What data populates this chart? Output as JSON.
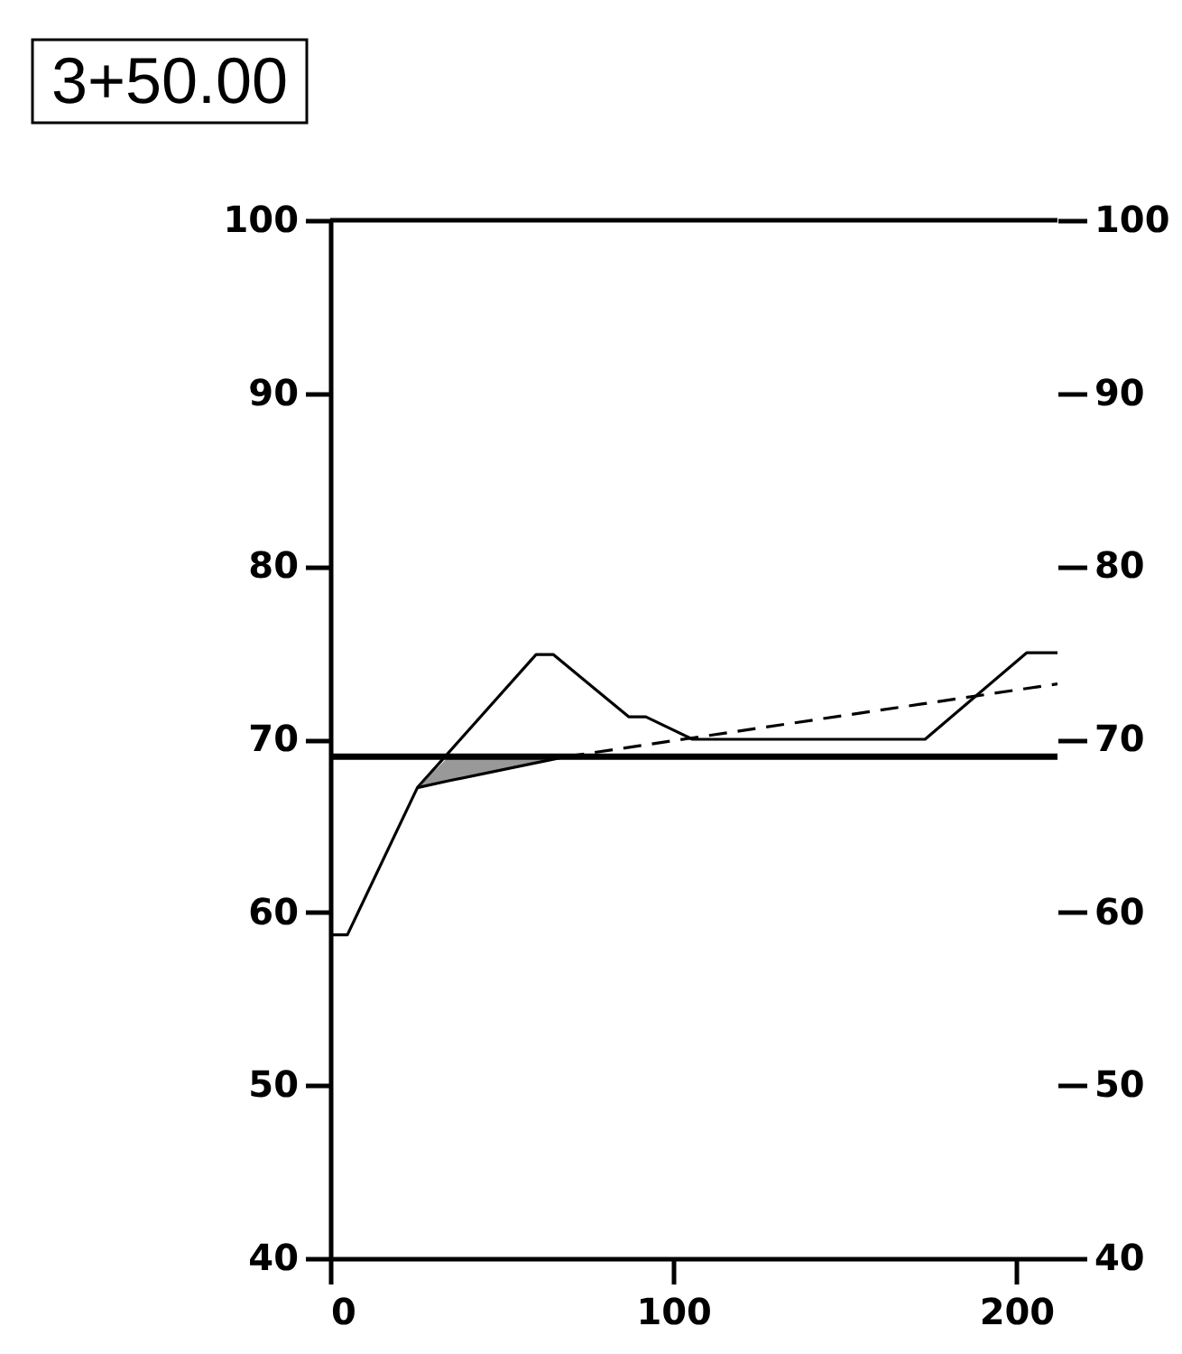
{
  "chart_data": {
    "type": "line",
    "title": "3+50.00",
    "xlim": [
      0,
      212
    ],
    "xticks": [
      0,
      100,
      200
    ],
    "ylim": [
      40,
      100
    ],
    "yticks": [
      40,
      50,
      60,
      70,
      80,
      90,
      100
    ],
    "y2lim": [
      40,
      100
    ],
    "y2ticks": [
      40,
      50,
      60,
      70,
      80,
      90,
      100
    ],
    "grid": false,
    "series": [
      {
        "color": "#000000",
        "line_style": "solid",
        "x": [
          0,
          5,
          25.4,
          60,
          65,
          87,
          92,
          105.6,
          173.4,
          203,
          212
        ],
        "values": [
          58.7,
          58.7,
          67.2,
          74.9,
          74.9,
          71.3,
          71.3,
          70,
          70,
          75,
          75
        ]
      },
      {
        "color": "#000000",
        "line_style": "dashed",
        "x": [
          68.8,
          212
        ],
        "values": [
          69.0,
          73.2
        ]
      },
      {
        "color": "#000000",
        "line_style": "solid",
        "x": [
          25.4,
          34.5,
          68.8
        ],
        "values": [
          67.2,
          67.6,
          69.0
        ],
        "lower": [
          67.2,
          67.6,
          69.0
        ],
        "upper": [
          67.2,
          69.0,
          69.0
        ]
      }
    ],
    "ref_lines": [
      {
        "axis": "y",
        "value": 69.0,
        "color": "#000000"
      }
    ]
  }
}
